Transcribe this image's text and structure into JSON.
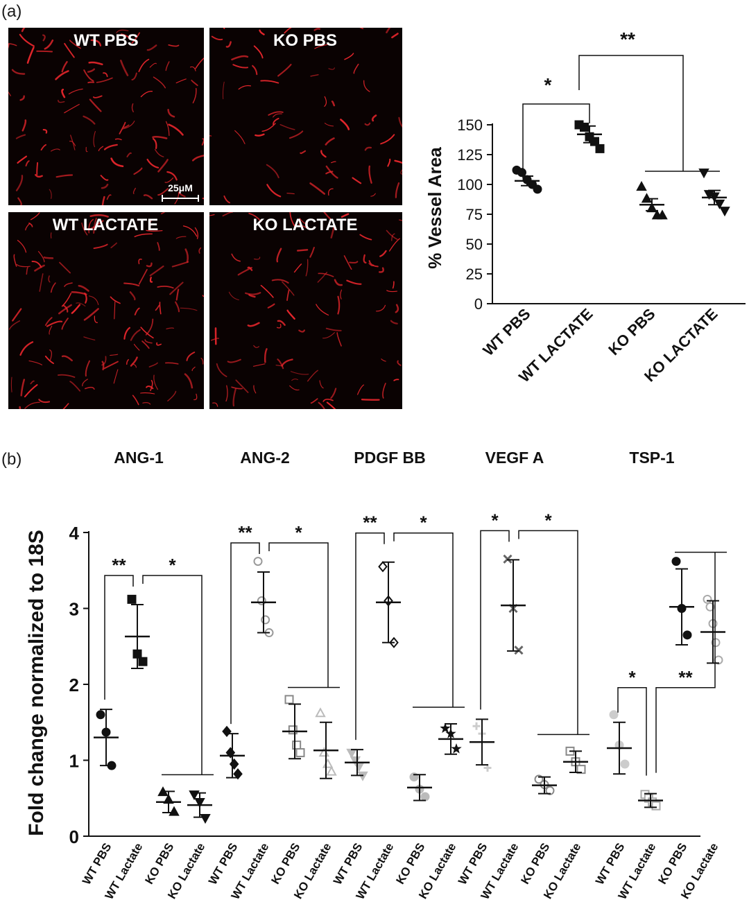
{
  "panels": {
    "a_label": "(a)",
    "b_label": "(b)"
  },
  "micrographs": {
    "titles": [
      "WT PBS",
      "KO PBS",
      "WT LACTATE",
      "KO LACTATE"
    ],
    "scale_bar": "25μM",
    "background": "#0a0202",
    "vessel_color": "#e8262c"
  },
  "chart_data": [
    {
      "type": "scatter",
      "id": "vessel-area",
      "title": "",
      "xlabel": "",
      "ylabel": "% Vessel Area",
      "ylim": [
        0,
        150
      ],
      "yticks": [
        0,
        25,
        50,
        75,
        100,
        125,
        150
      ],
      "categories": [
        "WT PBS",
        "WT LACTATE",
        "KO PBS",
        "KO LACTATE"
      ],
      "series": [
        {
          "name": "WT PBS",
          "marker": "circle",
          "fill": "#111111",
          "mean": 103,
          "error": 4,
          "points": [
            112,
            110,
            104,
            100,
            96
          ]
        },
        {
          "name": "WT LACTATE",
          "marker": "square",
          "fill": "#111111",
          "mean": 142,
          "error": 7,
          "points": [
            150,
            148,
            140,
            136,
            130
          ]
        },
        {
          "name": "KO PBS",
          "marker": "triangle-up",
          "fill": "#111111",
          "mean": 83,
          "error": 5,
          "points": [
            98,
            88,
            80,
            74,
            74
          ]
        },
        {
          "name": "KO LACTATE",
          "marker": "triangle-down",
          "fill": "#111111",
          "mean": 89,
          "error": 6,
          "points": [
            110,
            92,
            90,
            84,
            78
          ]
        }
      ],
      "significance": [
        {
          "label": "*",
          "from": 0,
          "to": 1
        },
        {
          "label": "**",
          "from": 1,
          "to": [
            2,
            3
          ]
        }
      ]
    },
    {
      "type": "scatter",
      "id": "fold-change",
      "title": "",
      "xlabel": "",
      "ylabel": "Fold  change normalized to 18S",
      "ylim": [
        0,
        4
      ],
      "yticks": [
        0,
        1,
        2,
        3,
        4
      ],
      "groups": [
        {
          "name": "ANG-1",
          "sig": [
            {
              "label": "**",
              "a": 0,
              "b": 1
            },
            {
              "label": "*",
              "a": 1,
              "b": [
                2,
                3
              ]
            }
          ],
          "series": [
            {
              "label": "WT PBS",
              "marker": "circle",
              "color": "#111111",
              "filled": true,
              "mean": 1.3,
              "sd": 0.37,
              "points": [
                1.6,
                1.37,
                0.93
              ]
            },
            {
              "label": "WT Lactate",
              "marker": "square",
              "color": "#111111",
              "filled": true,
              "mean": 2.63,
              "sd": 0.42,
              "points": [
                3.12,
                2.4,
                2.3
              ]
            },
            {
              "label": "KO PBS",
              "marker": "triangle-up",
              "color": "#111111",
              "filled": true,
              "mean": 0.45,
              "sd": 0.14,
              "points": [
                0.58,
                0.48,
                0.32
              ]
            },
            {
              "label": "KO Lactate",
              "marker": "triangle-down",
              "color": "#111111",
              "filled": true,
              "mean": 0.41,
              "sd": 0.16,
              "points": [
                0.55,
                0.45,
                0.24
              ]
            }
          ]
        },
        {
          "name": "ANG-2",
          "sig": [
            {
              "label": "**",
              "a": 0,
              "b": 1
            },
            {
              "label": "*",
              "a": 1,
              "b": [
                2,
                3
              ]
            }
          ],
          "series": [
            {
              "label": "WT PBS",
              "marker": "diamond",
              "color": "#111111",
              "filled": true,
              "mean": 1.06,
              "sd": 0.29,
              "points": [
                1.38,
                1.1,
                0.95,
                0.82
              ]
            },
            {
              "label": "WT Lactate",
              "marker": "circle",
              "color": "#999999",
              "filled": false,
              "mean": 3.08,
              "sd": 0.4,
              "points": [
                3.62,
                3.1,
                2.85,
                2.68
              ]
            },
            {
              "label": "KO PBS",
              "marker": "square",
              "color": "#888888",
              "filled": false,
              "mean": 1.38,
              "sd": 0.36,
              "points": [
                1.8,
                1.4,
                1.2,
                1.1
              ]
            },
            {
              "label": "KO Lactate",
              "marker": "triangle-up",
              "color": "#bbbbbb",
              "filled": false,
              "mean": 1.13,
              "sd": 0.37,
              "points": [
                1.62,
                1.1,
                0.95,
                0.85
              ]
            }
          ]
        },
        {
          "name": "PDGF BB",
          "sig": [
            {
              "label": "**",
              "a": 0,
              "b": 1
            },
            {
              "label": "*",
              "a": 1,
              "b": [
                2,
                3
              ]
            }
          ],
          "series": [
            {
              "label": "WT PBS",
              "marker": "triangle-down",
              "color": "#bbbbbb",
              "filled": true,
              "mean": 0.97,
              "sd": 0.17,
              "points": [
                1.1,
                1.0,
                0.92,
                0.8
              ]
            },
            {
              "label": "WT Lactate",
              "marker": "diamond",
              "color": "#111111",
              "filled": false,
              "mean": 3.08,
              "sd": 0.53,
              "points": [
                3.55,
                3.1,
                2.55
              ]
            },
            {
              "label": "KO PBS",
              "marker": "circle",
              "color": "#bbbbbb",
              "filled": true,
              "mean": 0.64,
              "sd": 0.17,
              "points": [
                0.78,
                0.62,
                0.52
              ]
            },
            {
              "label": "KO Lactate",
              "marker": "star",
              "color": "#111111",
              "filled": true,
              "mean": 1.28,
              "sd": 0.2,
              "points": [
                1.42,
                1.35,
                1.15
              ]
            }
          ]
        },
        {
          "name": "VEGF A",
          "sig": [
            {
              "label": "*",
              "a": 0,
              "b": 1
            },
            {
              "label": "*",
              "a": 1,
              "b": [
                2,
                3
              ]
            }
          ],
          "series": [
            {
              "label": "WT PBS",
              "marker": "plus",
              "color": "#cccccc",
              "filled": true,
              "mean": 1.24,
              "sd": 0.3,
              "points": [
                1.45,
                1.35,
                0.9
              ]
            },
            {
              "label": "WT Lactate",
              "marker": "cross",
              "color": "#666666",
              "filled": true,
              "mean": 3.04,
              "sd": 0.6,
              "points": [
                3.65,
                3.0,
                2.45
              ]
            },
            {
              "label": "KO PBS",
              "marker": "circle",
              "color": "#888888",
              "filled": false,
              "mean": 0.67,
              "sd": 0.11,
              "points": [
                0.75,
                0.68,
                0.6
              ]
            },
            {
              "label": "KO Lactate",
              "marker": "square",
              "color": "#888888",
              "filled": false,
              "mean": 0.98,
              "sd": 0.14,
              "points": [
                1.12,
                0.98,
                0.88
              ]
            }
          ]
        },
        {
          "name": "TSP-1",
          "sig": [
            {
              "label": "*",
              "a": 0,
              "b": 1
            },
            {
              "label": "**",
              "a": 1,
              "b": [
                2,
                3
              ]
            }
          ],
          "series": [
            {
              "label": "WT PBS",
              "marker": "circle",
              "color": "#cccccc",
              "filled": true,
              "mean": 1.16,
              "sd": 0.34,
              "points": [
                1.6,
                1.2,
                0.95
              ]
            },
            {
              "label": "WT Lactate",
              "marker": "square",
              "color": "#aaaaaa",
              "filled": false,
              "mean": 0.47,
              "sd": 0.09,
              "points": [
                0.55,
                0.5,
                0.45,
                0.4
              ]
            },
            {
              "label": "KO PBS",
              "marker": "circle",
              "color": "#111111",
              "filled": true,
              "mean": 3.02,
              "sd": 0.5,
              "points": [
                3.62,
                3.0,
                2.65
              ]
            },
            {
              "label": "KO Lactate",
              "marker": "circle",
              "color": "#aaaaaa",
              "filled": false,
              "mean": 2.69,
              "sd": 0.41,
              "points": [
                3.12,
                3.02,
                2.8,
                2.55,
                2.32
              ]
            }
          ]
        }
      ]
    }
  ]
}
